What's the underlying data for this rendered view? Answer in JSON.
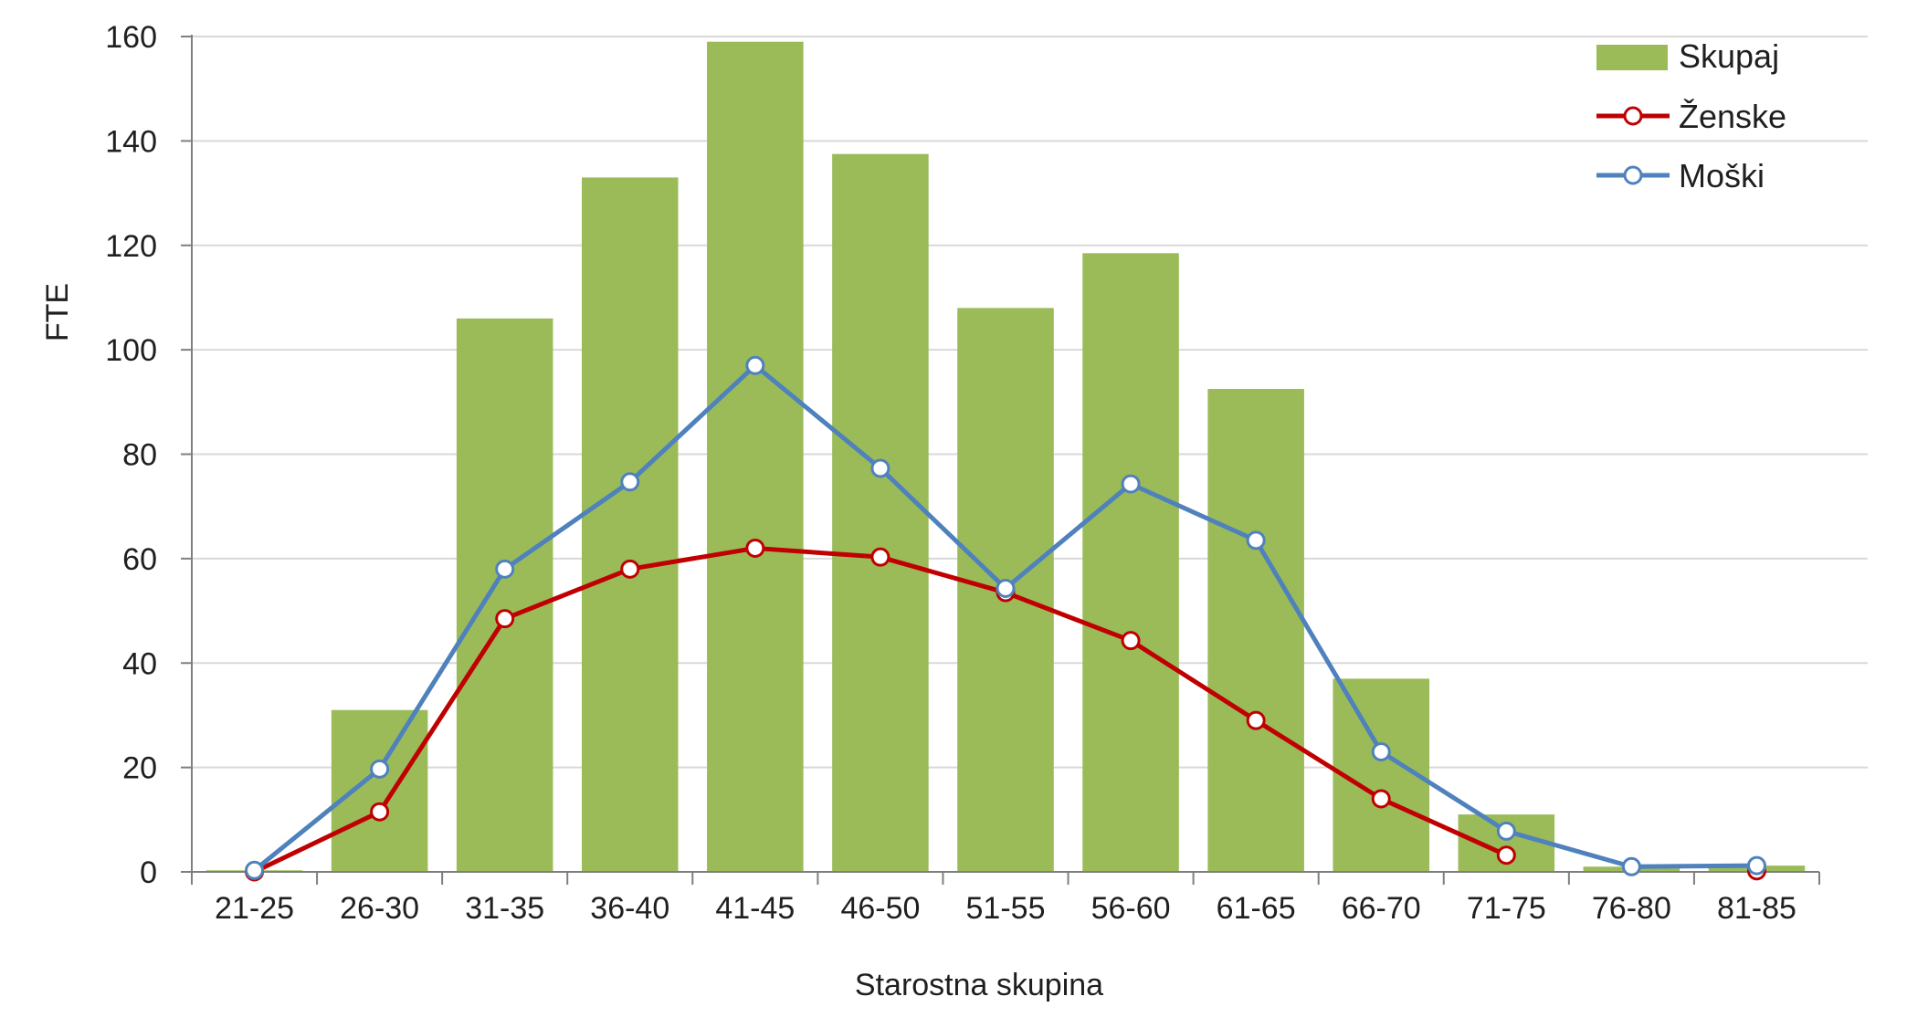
{
  "chart_data": {
    "type": "bar",
    "title": "",
    "xlabel": "Starostna skupina",
    "ylabel": "FTE",
    "ylim": [
      0,
      160
    ],
    "yticks": [
      0,
      20,
      40,
      60,
      80,
      100,
      120,
      140,
      160
    ],
    "grid": true,
    "legend_position": "top-right",
    "categories": [
      "21-25",
      "26-30",
      "31-35",
      "36-40",
      "41-45",
      "46-50",
      "51-55",
      "56-60",
      "61-65",
      "66-70",
      "71-75",
      "76-80",
      "81-85"
    ],
    "series": [
      {
        "name": "Skupaj",
        "type": "bar",
        "color": "#9BBB59",
        "values": [
          0.3,
          31,
          106,
          133,
          159,
          137.5,
          108,
          118.5,
          92.5,
          37,
          11,
          1,
          1.2
        ]
      },
      {
        "name": "Ženske",
        "type": "line",
        "color": "#C00000",
        "values": [
          0,
          11.5,
          48.5,
          58,
          62,
          60.3,
          53.5,
          44.3,
          29,
          14,
          3.2,
          null,
          0.2
        ]
      },
      {
        "name": "Moški",
        "type": "line",
        "color": "#4F81BD",
        "values": [
          0.3,
          19.7,
          58,
          74.7,
          97,
          77.3,
          54.3,
          74.3,
          63.5,
          23,
          7.8,
          1,
          1.2
        ]
      }
    ]
  }
}
